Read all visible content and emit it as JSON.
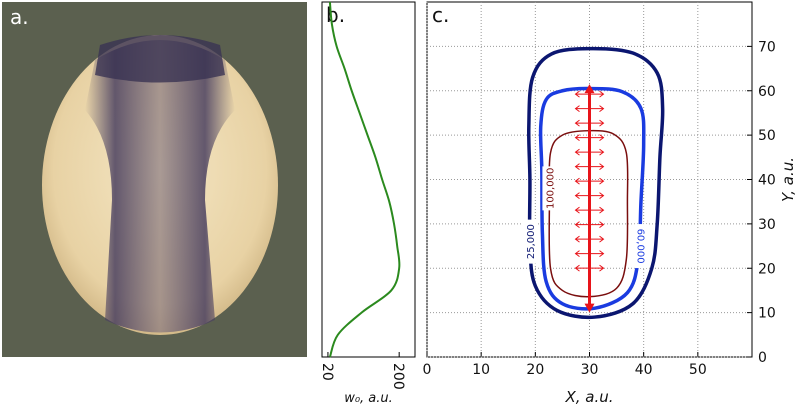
{
  "panel_labels": [
    "a.",
    "b.",
    "c."
  ],
  "chart_data": [
    {
      "type": "line",
      "xlabel": "w₀, a.u.",
      "xlim": [
        5,
        240
      ],
      "ylim": [
        0,
        80
      ],
      "xticks": [
        20,
        200
      ],
      "series": [
        {
          "color": "#2b8a1e",
          "x": [
            25,
            30,
            42,
            62,
            80,
            100,
            120,
            140,
            157,
            175,
            187,
            195,
            200,
            180,
            105,
            45,
            25
          ],
          "y": [
            80,
            75,
            70,
            65,
            60,
            55,
            50,
            45,
            40,
            35,
            30,
            25,
            20,
            15,
            10,
            5,
            0
          ]
        }
      ]
    },
    {
      "type": "contour",
      "xlabel": "X, a.u.",
      "ylabel": "Y, a.u.",
      "xlim": [
        0,
        60
      ],
      "ylim": [
        0,
        80
      ],
      "xticks": [
        0,
        10,
        20,
        30,
        40,
        50
      ],
      "yticks": [
        0,
        10,
        20,
        30,
        40,
        50,
        60,
        70
      ],
      "grid": true,
      "values": [
        25000,
        60000,
        100000
      ],
      "value_labels": [
        "25,000",
        "60,000",
        "100,000"
      ],
      "series": [
        {
          "color": "#0b1670",
          "x": [
            30,
            38,
            42.5,
            43.5,
            43,
            42.5,
            41.5,
            38,
            31,
            24,
            20,
            19,
            19,
            18.8,
            19.5,
            23
          ],
          "y": [
            69.5,
            68.5,
            64,
            56,
            45,
            30,
            20,
            12,
            9,
            10.5,
            16,
            25,
            40,
            52,
            63,
            68.3
          ]
        },
        {
          "color": "#1a3be0",
          "x": [
            30,
            36,
            39.5,
            40,
            39.5,
            39,
            37,
            31,
            25,
            22,
            21.3,
            21.2,
            21,
            22,
            25
          ],
          "y": [
            60.5,
            59.8,
            56,
            48,
            35,
            22,
            14.5,
            11,
            12,
            17,
            28,
            42,
            52,
            58,
            60
          ]
        },
        {
          "color": "#7a0e0e",
          "x": [
            30,
            34.5,
            36.8,
            37,
            36.8,
            35,
            30,
            25,
            22.8,
            22.6,
            22.8,
            25
          ],
          "y": [
            51,
            50.2,
            46,
            35,
            22,
            15.5,
            13.6,
            15,
            20,
            35,
            46,
            50
          ]
        }
      ]
    }
  ]
}
